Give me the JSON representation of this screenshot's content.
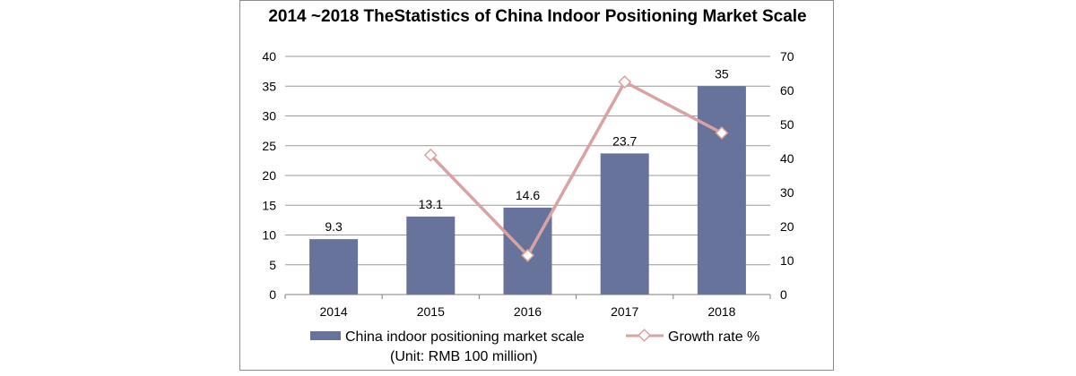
{
  "chart_data": {
    "type": "bar",
    "title": "2014 ~2018 TheStatistics of China Indoor Positioning Market Scale",
    "categories": [
      "2014",
      "2015",
      "2016",
      "2017",
      "2018"
    ],
    "series": [
      {
        "name": "China indoor positioning market scale",
        "type": "bar",
        "axis": "left",
        "values": [
          9.3,
          13.1,
          14.6,
          23.7,
          35
        ],
        "data_labels": [
          "9.3",
          "13.1",
          "14.6",
          "23.7",
          "35"
        ],
        "color": "#67739b"
      },
      {
        "name": "Growth rate %",
        "type": "line",
        "axis": "right",
        "values": [
          null,
          41,
          11.5,
          62.5,
          47.5
        ],
        "color": "#d9a3a3"
      }
    ],
    "ylim_left": [
      0,
      40
    ],
    "yticks_left": [
      "0",
      "5",
      "10",
      "15",
      "20",
      "25",
      "30",
      "35",
      "40"
    ],
    "ylim_right": [
      0,
      70
    ],
    "yticks_right": [
      "0",
      "10",
      "20",
      "30",
      "40",
      "50",
      "60",
      "70"
    ],
    "grid": true,
    "legend_position": "bottom",
    "note": "(Unit: RMB 100 million)"
  }
}
